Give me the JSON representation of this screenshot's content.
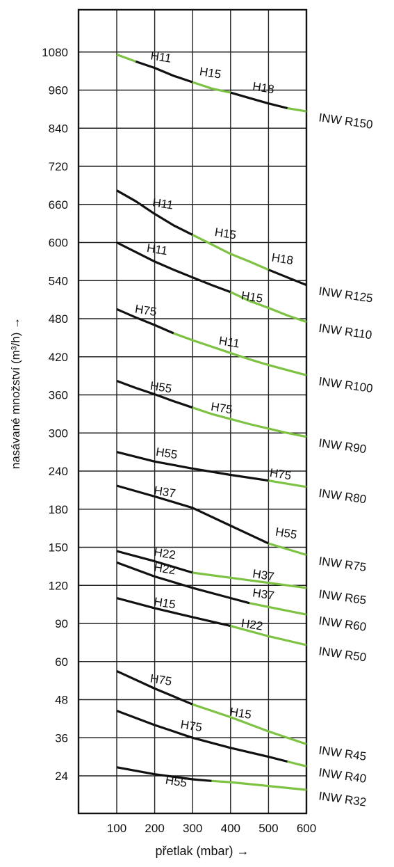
{
  "chart_data": {
    "type": "line",
    "xlabel": "přetlak (mbar) →",
    "ylabel": "nasávané množství (m³/h) →",
    "x_ticks": [
      "100",
      "200",
      "300",
      "400",
      "500",
      "600"
    ],
    "x_values": [
      100,
      200,
      300,
      400,
      500,
      600
    ],
    "xlim": [
      0,
      600
    ],
    "y_ticks": [
      "24",
      "36",
      "48",
      "60",
      "90",
      "120",
      "150",
      "180",
      "240",
      "300",
      "360",
      "420",
      "480",
      "540",
      "600",
      "660",
      "720",
      "840",
      "960",
      "1080"
    ],
    "grid": true,
    "colors": {
      "black": "#111111",
      "green": "#7dc242"
    },
    "series": [
      {
        "name": "INW R150",
        "segments": [
          {
            "color": "green",
            "points": [
              [
                100,
                1072
              ],
              [
                150,
                1050
              ]
            ]
          },
          {
            "color": "black",
            "points": [
              [
                150,
                1050
              ],
              [
                200,
                1030
              ],
              [
                250,
                1005
              ],
              [
                300,
                985
              ]
            ]
          },
          {
            "color": "green",
            "points": [
              [
                300,
                985
              ],
              [
                350,
                965
              ],
              [
                400,
                952
              ]
            ]
          },
          {
            "color": "black",
            "points": [
              [
                400,
                952
              ],
              [
                450,
                935
              ],
              [
                500,
                918
              ],
              [
                550,
                903
              ]
            ]
          },
          {
            "color": "green",
            "points": [
              [
                550,
                903
              ],
              [
                600,
                893
              ]
            ]
          }
        ],
        "motor_labels": [
          {
            "text": "H11",
            "x": 215,
            "y": 1052
          },
          {
            "text": "H15",
            "x": 345,
            "y": 1002
          },
          {
            "text": "H18",
            "x": 485,
            "y": 955
          }
        ]
      },
      {
        "name": "INW R125",
        "segments": [
          {
            "color": "black",
            "points": [
              [
                100,
                682
              ],
              [
                150,
                665
              ],
              [
                200,
                645
              ],
              [
                250,
                627
              ],
              [
                300,
                612
              ]
            ]
          },
          {
            "color": "green",
            "points": [
              [
                300,
                612
              ],
              [
                350,
                597
              ],
              [
                400,
                582
              ],
              [
                450,
                570
              ],
              [
                500,
                557
              ]
            ]
          },
          {
            "color": "black",
            "points": [
              [
                500,
                557
              ],
              [
                550,
                545
              ],
              [
                600,
                533
              ]
            ]
          }
        ],
        "motor_labels": [
          {
            "text": "H11",
            "x": 220,
            "y": 655
          },
          {
            "text": "H15",
            "x": 385,
            "y": 608
          },
          {
            "text": "H18",
            "x": 535,
            "y": 568
          }
        ]
      },
      {
        "name": "INW R110",
        "segments": [
          {
            "color": "black",
            "points": [
              [
                100,
                600
              ],
              [
                150,
                585
              ],
              [
                200,
                570
              ],
              [
                250,
                557
              ],
              [
                300,
                545
              ],
              [
                350,
                533
              ],
              [
                400,
                522
              ]
            ]
          },
          {
            "color": "green",
            "points": [
              [
                400,
                522
              ],
              [
                450,
                508
              ],
              [
                500,
                497
              ],
              [
                550,
                485
              ],
              [
                600,
                475
              ]
            ]
          }
        ],
        "motor_labels": [
          {
            "text": "H11",
            "x": 205,
            "y": 583
          },
          {
            "text": "H15",
            "x": 455,
            "y": 508
          }
        ]
      },
      {
        "name": "INW R100",
        "segments": [
          {
            "color": "black",
            "points": [
              [
                100,
                495
              ],
              [
                150,
                482
              ],
              [
                200,
                470
              ],
              [
                250,
                457
              ]
            ]
          },
          {
            "color": "green",
            "points": [
              [
                250,
                457
              ],
              [
                300,
                446
              ],
              [
                350,
                436
              ],
              [
                400,
                426
              ],
              [
                450,
                416
              ],
              [
                500,
                407
              ],
              [
                550,
                399
              ],
              [
                600,
                391
              ]
            ]
          }
        ],
        "motor_labels": [
          {
            "text": "H75",
            "x": 175,
            "y": 487
          },
          {
            "text": "H11",
            "x": 395,
            "y": 437
          }
        ]
      },
      {
        "name": "INW R90",
        "segments": [
          {
            "color": "black",
            "points": [
              [
                100,
                382
              ],
              [
                150,
                371
              ],
              [
                200,
                361
              ],
              [
                250,
                350
              ],
              [
                300,
                340
              ]
            ]
          },
          {
            "color": "green",
            "points": [
              [
                300,
                340
              ],
              [
                350,
                330
              ],
              [
                400,
                322
              ],
              [
                450,
                314
              ],
              [
                500,
                307
              ],
              [
                550,
                300
              ],
              [
                600,
                294
              ]
            ]
          }
        ],
        "motor_labels": [
          {
            "text": "H55",
            "x": 215,
            "y": 366
          },
          {
            "text": "H75",
            "x": 375,
            "y": 333
          }
        ]
      },
      {
        "name": "INW R80",
        "segments": [
          {
            "color": "black",
            "points": [
              [
                100,
                270
              ],
              [
                200,
                255
              ],
              [
                300,
                244
              ],
              [
                400,
                234
              ],
              [
                500,
                225
              ]
            ]
          },
          {
            "color": "green",
            "points": [
              [
                500,
                225
              ],
              [
                600,
                215
              ]
            ]
          }
        ],
        "motor_labels": [
          {
            "text": "H55",
            "x": 230,
            "y": 262
          },
          {
            "text": "H75",
            "x": 530,
            "y": 229
          }
        ]
      },
      {
        "name": "INW R75",
        "segments": [
          {
            "color": "black",
            "points": [
              [
                100,
                217
              ],
              [
                200,
                200
              ],
              [
                300,
                182
              ],
              [
                400,
                167
              ],
              [
                500,
                153
              ]
            ]
          },
          {
            "color": "green",
            "points": [
              [
                500,
                153
              ],
              [
                600,
                144
              ]
            ]
          }
        ],
        "motor_labels": [
          {
            "text": "H37",
            "x": 225,
            "y": 201
          },
          {
            "text": "H55",
            "x": 545,
            "y": 158
          }
        ]
      },
      {
        "name": "INW R65",
        "segments": [
          {
            "color": "black",
            "points": [
              [
                100,
                147
              ],
              [
                200,
                139
              ],
              [
                300,
                130
              ]
            ]
          },
          {
            "color": "green",
            "points": [
              [
                300,
                130
              ],
              [
                400,
                126
              ],
              [
                500,
                122
              ],
              [
                600,
                118
              ]
            ]
          }
        ],
        "motor_labels": [
          {
            "text": "H22",
            "x": 225,
            "y": 142
          },
          {
            "text": "H37",
            "x": 485,
            "y": 125
          }
        ]
      },
      {
        "name": "INW R60",
        "segments": [
          {
            "color": "black",
            "points": [
              [
                100,
                138
              ],
              [
                200,
                127
              ],
              [
                300,
                118
              ],
              [
                400,
                110
              ],
              [
                450,
                106
              ]
            ]
          },
          {
            "color": "green",
            "points": [
              [
                450,
                106
              ],
              [
                500,
                103
              ],
              [
                600,
                97
              ]
            ]
          }
        ],
        "motor_labels": [
          {
            "text": "H22",
            "x": 225,
            "y": 130
          },
          {
            "text": "H37",
            "x": 485,
            "y": 110
          }
        ]
      },
      {
        "name": "INW R50",
        "segments": [
          {
            "color": "black",
            "points": [
              [
                100,
                110
              ],
              [
                200,
                102
              ],
              [
                300,
                95
              ],
              [
                400,
                88
              ]
            ]
          },
          {
            "color": "green",
            "points": [
              [
                400,
                88
              ],
              [
                500,
                80
              ],
              [
                600,
                73
              ]
            ]
          }
        ],
        "motor_labels": [
          {
            "text": "H15",
            "x": 225,
            "y": 103
          },
          {
            "text": "H22",
            "x": 455,
            "y": 86
          }
        ]
      },
      {
        "name": "INW R45",
        "segments": [
          {
            "color": "black",
            "points": [
              [
                100,
                57
              ],
              [
                200,
                51.5
              ],
              [
                300,
                46.5
              ]
            ]
          },
          {
            "color": "green",
            "points": [
              [
                300,
                46.5
              ],
              [
                400,
                42.5
              ],
              [
                500,
                38
              ],
              [
                600,
                34
              ]
            ]
          }
        ],
        "motor_labels": [
          {
            "text": "H75",
            "x": 215,
            "y": 53
          },
          {
            "text": "H15",
            "x": 425,
            "y": 42.5
          }
        ]
      },
      {
        "name": "INW R40",
        "segments": [
          {
            "color": "black",
            "points": [
              [
                100,
                44.5
              ],
              [
                200,
                40
              ],
              [
                300,
                36
              ],
              [
                400,
                32.8
              ],
              [
                500,
                30
              ],
              [
                550,
                28.5
              ]
            ]
          },
          {
            "color": "green",
            "points": [
              [
                550,
                28.5
              ],
              [
                600,
                27
              ]
            ]
          }
        ],
        "motor_labels": [
          {
            "text": "H75",
            "x": 295,
            "y": 38.5
          }
        ]
      },
      {
        "name": "INW R32",
        "segments": [
          {
            "color": "black",
            "points": [
              [
                100,
                26.7
              ],
              [
                200,
                24.5
              ],
              [
                300,
                22.9
              ],
              [
                350,
                22.4
              ]
            ]
          },
          {
            "color": "green",
            "points": [
              [
                350,
                22.4
              ],
              [
                400,
                22
              ],
              [
                500,
                20.8
              ],
              [
                600,
                19.6
              ]
            ]
          }
        ],
        "motor_labels": [
          {
            "text": "H55",
            "x": 255,
            "y": 21
          }
        ]
      }
    ]
  }
}
